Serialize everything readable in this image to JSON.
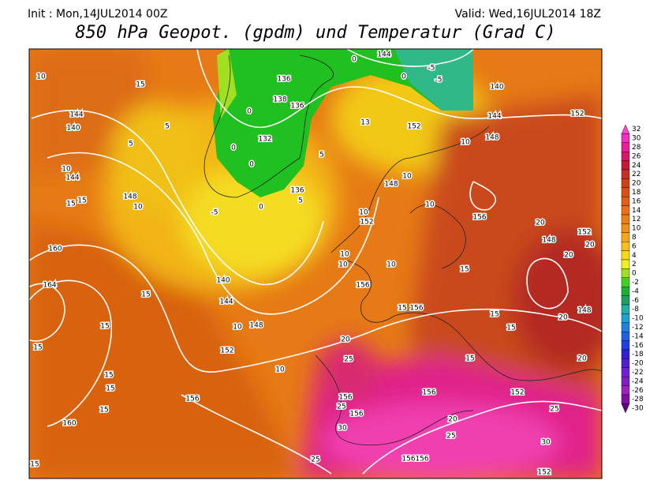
{
  "header": {
    "init": "Init : Mon,14JUL2014 00Z",
    "valid": "Valid: Wed,16JUL2014 18Z",
    "title": "850 hPa Geopot. (gpdm) und Temperatur (Grad C)"
  },
  "colorbar": {
    "labels": [
      32,
      30,
      28,
      26,
      24,
      22,
      20,
      18,
      16,
      14,
      12,
      10,
      8,
      6,
      4,
      2,
      0,
      -2,
      -4,
      -6,
      -8,
      -10,
      -12,
      -14,
      -16,
      -18,
      -20,
      -22,
      -24,
      -26,
      -28,
      -30
    ],
    "colors": [
      "#ff40d0",
      "#f030c0",
      "#e82098",
      "#d81868",
      "#c81838",
      "#c83020",
      "#d04018",
      "#d85018",
      "#e06018",
      "#e87018",
      "#ec8018",
      "#f09018",
      "#f4a818",
      "#f8c018",
      "#f8d818",
      "#f0f020",
      "#a0e020",
      "#40d020",
      "#20b030",
      "#20a060",
      "#20b0a0",
      "#20a0d0",
      "#2080e0",
      "#2060e0",
      "#2040e0",
      "#3020d0",
      "#5020d0",
      "#7020d0",
      "#8020c0",
      "#a020c0",
      "#8010a0",
      "#600080"
    ]
  },
  "contour_labels": [
    10,
    15,
    144,
    140,
    5,
    5,
    10,
    144,
    15,
    15,
    148,
    10,
    160,
    164,
    15,
    15,
    15,
    15,
    15,
    15,
    160,
    15,
    156,
    152,
    10,
    148,
    144,
    140,
    10,
    -5,
    0,
    136,
    5,
    0,
    136,
    138,
    136,
    132,
    0,
    0,
    5,
    144,
    0,
    0,
    -5,
    -5,
    140,
    144,
    10,
    152,
    13,
    152,
    148,
    10,
    148,
    10,
    152,
    156,
    10,
    20,
    148,
    152,
    20,
    20,
    15,
    156,
    15,
    156,
    10,
    10,
    10,
    15,
    15,
    20,
    25,
    148,
    20,
    20,
    15,
    156,
    152,
    25,
    20,
    25,
    30,
    156,
    25,
    156,
    30,
    156,
    156,
    25,
    152
  ]
}
